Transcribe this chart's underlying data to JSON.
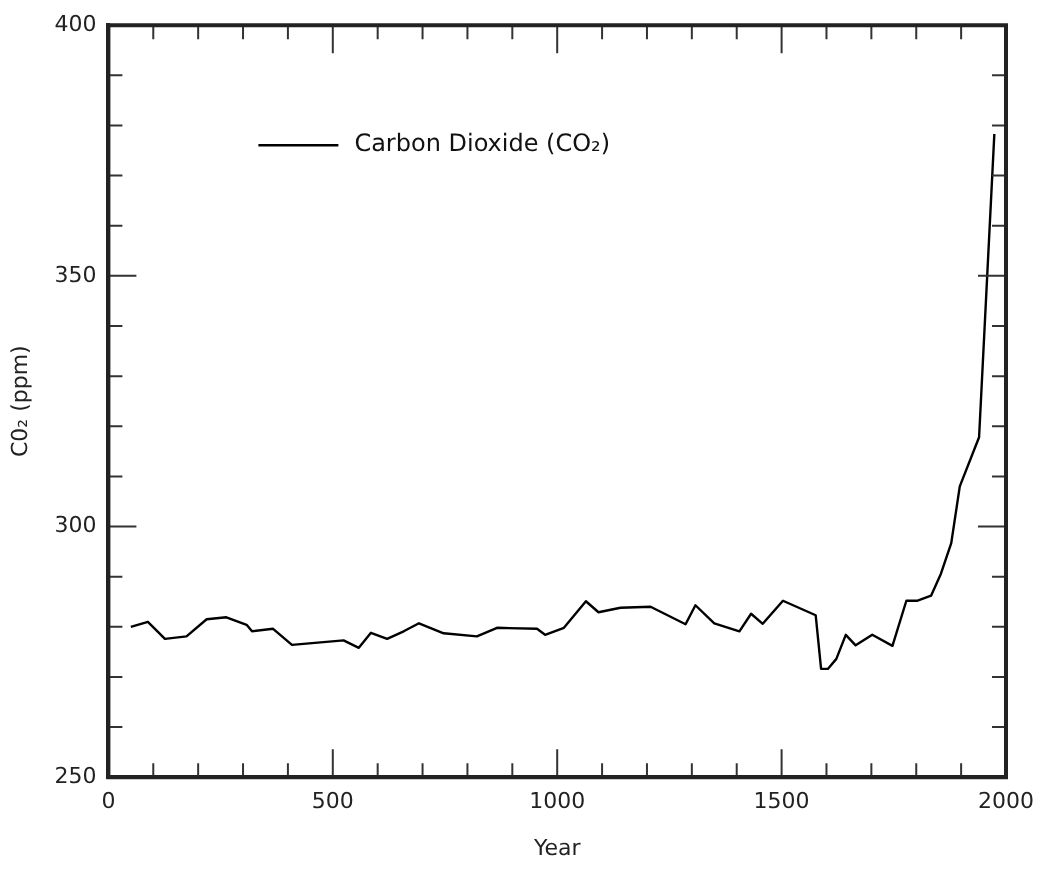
{
  "chart_data": {
    "type": "line",
    "xlabel": "Year",
    "ylabel": "C0₂ (ppm)",
    "legend": "top left",
    "marker": "none",
    "line_style": "solid",
    "grid": false,
    "xlim": [
      0,
      2000
    ],
    "xticks": [
      0,
      {
        "value": 100,
        "label": null
      },
      {
        "value": 200,
        "label": null
      },
      {
        "value": 300,
        "label": null
      },
      {
        "value": 400,
        "label": null
      },
      500,
      {
        "value": 600,
        "label": null
      },
      {
        "value": 700,
        "label": null
      },
      {
        "value": 800,
        "label": null
      },
      {
        "value": 900,
        "label": null
      },
      1000,
      {
        "value": 1100,
        "label": null
      },
      {
        "value": 1200,
        "label": null
      },
      {
        "value": 1300,
        "label": null
      },
      {
        "value": 1400,
        "label": null
      },
      1500,
      {
        "value": 1600,
        "label": null
      },
      {
        "value": 1700,
        "label": null
      },
      {
        "value": 1800,
        "label": null
      },
      {
        "value": 1900,
        "label": null
      },
      2000
    ],
    "ylim": [
      250,
      400
    ],
    "yticks": [
      250,
      {
        "value": 260,
        "label": null
      },
      {
        "value": 270,
        "label": null
      },
      {
        "value": 280,
        "label": null
      },
      {
        "value": 290,
        "label": null
      },
      300,
      {
        "value": 310,
        "label": null
      },
      {
        "value": 320,
        "label": null
      },
      {
        "value": 330,
        "label": null
      },
      {
        "value": 340,
        "label": null
      },
      350,
      {
        "value": 360,
        "label": null
      },
      {
        "value": 370,
        "label": null
      },
      {
        "value": 380,
        "label": null
      },
      {
        "value": 390,
        "label": null
      },
      400
    ],
    "x": [
      50,
      88,
      126,
      174,
      219,
      263,
      308,
      320,
      367,
      409,
      524,
      558,
      585,
      621,
      658,
      692,
      747,
      821,
      866,
      955,
      973,
      1015,
      1064,
      1092,
      1141,
      1208,
      1286,
      1308,
      1350,
      1406,
      1432,
      1458,
      1503,
      1576,
      1588,
      1603,
      1622,
      1643,
      1665,
      1702,
      1747,
      1778,
      1803,
      1833,
      1855,
      1878,
      1897,
      1940,
      1974
    ],
    "series": [
      {
        "name": "Carbon Dioxide (CO₂)",
        "color": "#000000",
        "values": [
          280.0,
          281.0,
          277.6,
          278.1,
          281.5,
          281.9,
          280.4,
          279.1,
          279.6,
          276.4,
          277.3,
          275.8,
          278.8,
          277.6,
          279.1,
          280.7,
          278.7,
          278.1,
          279.8,
          279.6,
          278.4,
          279.8,
          285.1,
          282.9,
          283.8,
          284.0,
          280.5,
          284.3,
          280.7,
          279.1,
          282.6,
          280.6,
          285.2,
          282.3,
          271.6,
          271.6,
          273.6,
          278.4,
          276.3,
          278.4,
          276.2,
          285.2,
          285.2,
          286.2,
          290.6,
          296.7,
          308.0,
          317.8,
          378.3
        ]
      }
    ]
  }
}
